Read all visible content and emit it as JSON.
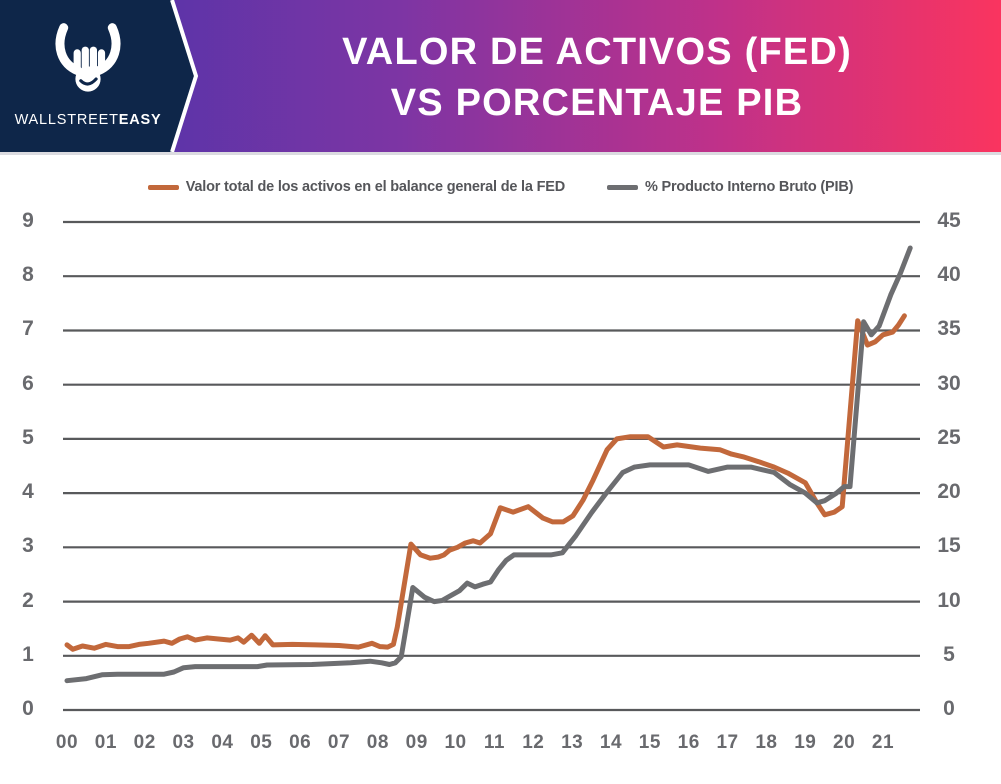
{
  "header": {
    "brand": {
      "regular": "WALLSTREET",
      "bold": "EASY"
    },
    "title_line1": "VALOR DE ACTIVOS (FED)",
    "title_line2": "VS PORCENTAJE PIB",
    "colors": {
      "navy": "#0E2649",
      "gradient_start": "#4634AB",
      "gradient_mid": "#7D35A4",
      "gradient_mid2": "#C03189",
      "gradient_end": "#FA345F",
      "title_text": "#FFFFFF"
    }
  },
  "legend": [
    {
      "label": "Valor total de los activos en el balance general de la FED",
      "color": "#C2683B"
    },
    {
      "label": "% Producto Interno Bruto (PIB)",
      "color": "#6D6E71"
    }
  ],
  "chart_data": {
    "type": "line",
    "title": "VALOR DE ACTIVOS (FED) VS PORCENTAJE PIB",
    "grid": "horizontal",
    "grid_color": "#58595B",
    "tick_color": "#696A6E",
    "legend_position": "top",
    "x_axis": {
      "tick_labels": [
        "00",
        "01",
        "02",
        "03",
        "04",
        "05",
        "06",
        "07",
        "08",
        "09",
        "10",
        "11",
        "12",
        "13",
        "14",
        "15",
        "16",
        "17",
        "18",
        "19",
        "20",
        "21"
      ],
      "range": [
        2000,
        2021.8
      ]
    },
    "left_axis": {
      "ticks": [
        0,
        1,
        2,
        3,
        4,
        5,
        6,
        7,
        8,
        9
      ],
      "range": [
        0,
        9
      ]
    },
    "right_axis": {
      "ticks": [
        0,
        5,
        10,
        15,
        20,
        25,
        30,
        35,
        40,
        45
      ],
      "range": [
        0,
        45
      ]
    },
    "series": [
      {
        "id": "fed-assets-line",
        "name": "Valor total de los activos en el balance general de la FED",
        "axis": "left",
        "color": "#C2683B",
        "points": [
          [
            2000.0,
            1.2
          ],
          [
            2000.15,
            1.12
          ],
          [
            2000.4,
            1.18
          ],
          [
            2000.7,
            1.14
          ],
          [
            2001.0,
            1.21
          ],
          [
            2001.3,
            1.17
          ],
          [
            2001.6,
            1.17
          ],
          [
            2001.85,
            1.21
          ],
          [
            2002.1,
            1.23
          ],
          [
            2002.5,
            1.27
          ],
          [
            2002.7,
            1.23
          ],
          [
            2002.9,
            1.31
          ],
          [
            2003.1,
            1.35
          ],
          [
            2003.3,
            1.29
          ],
          [
            2003.6,
            1.33
          ],
          [
            2003.9,
            1.31
          ],
          [
            2004.2,
            1.29
          ],
          [
            2004.4,
            1.33
          ],
          [
            2004.55,
            1.25
          ],
          [
            2004.75,
            1.38
          ],
          [
            2004.95,
            1.23
          ],
          [
            2005.1,
            1.37
          ],
          [
            2005.3,
            1.2
          ],
          [
            2005.8,
            1.21
          ],
          [
            2006.4,
            1.2
          ],
          [
            2007.0,
            1.19
          ],
          [
            2007.5,
            1.16
          ],
          [
            2007.85,
            1.23
          ],
          [
            2008.05,
            1.17
          ],
          [
            2008.25,
            1.16
          ],
          [
            2008.4,
            1.21
          ],
          [
            2008.5,
            1.53
          ],
          [
            2008.85,
            3.06
          ],
          [
            2009.1,
            2.86
          ],
          [
            2009.35,
            2.8
          ],
          [
            2009.55,
            2.82
          ],
          [
            2009.7,
            2.86
          ],
          [
            2009.85,
            2.95
          ],
          [
            2010.05,
            3.0
          ],
          [
            2010.25,
            3.08
          ],
          [
            2010.45,
            3.12
          ],
          [
            2010.63,
            3.08
          ],
          [
            2010.9,
            3.25
          ],
          [
            2011.15,
            3.73
          ],
          [
            2011.48,
            3.65
          ],
          [
            2011.87,
            3.75
          ],
          [
            2012.25,
            3.54
          ],
          [
            2012.5,
            3.47
          ],
          [
            2012.77,
            3.47
          ],
          [
            2013.02,
            3.58
          ],
          [
            2013.28,
            3.87
          ],
          [
            2013.54,
            4.24
          ],
          [
            2013.9,
            4.8
          ],
          [
            2014.15,
            5.0
          ],
          [
            2014.5,
            5.04
          ],
          [
            2014.95,
            5.04
          ],
          [
            2015.35,
            4.85
          ],
          [
            2015.7,
            4.89
          ],
          [
            2016.3,
            4.83
          ],
          [
            2016.8,
            4.8
          ],
          [
            2017.1,
            4.72
          ],
          [
            2017.4,
            4.67
          ],
          [
            2017.8,
            4.58
          ],
          [
            2018.2,
            4.48
          ],
          [
            2018.55,
            4.37
          ],
          [
            2019.0,
            4.19
          ],
          [
            2019.3,
            3.82
          ],
          [
            2019.5,
            3.6
          ],
          [
            2019.75,
            3.65
          ],
          [
            2019.95,
            3.75
          ],
          [
            2020.35,
            7.18
          ],
          [
            2020.6,
            6.73
          ],
          [
            2020.8,
            6.79
          ],
          [
            2021.0,
            6.92
          ],
          [
            2021.25,
            6.97
          ],
          [
            2021.4,
            7.1
          ],
          [
            2021.55,
            7.27
          ]
        ]
      },
      {
        "id": "pib-line",
        "name": "% Producto Interno Bruto (PIB)",
        "axis": "right",
        "color": "#6D6E71",
        "points": [
          [
            2000.0,
            2.7
          ],
          [
            2000.5,
            2.9
          ],
          [
            2000.9,
            3.25
          ],
          [
            2001.3,
            3.3
          ],
          [
            2002.5,
            3.3
          ],
          [
            2002.75,
            3.5
          ],
          [
            2003.0,
            3.9
          ],
          [
            2003.3,
            4.0
          ],
          [
            2004.9,
            4.0
          ],
          [
            2005.15,
            4.15
          ],
          [
            2006.3,
            4.2
          ],
          [
            2007.3,
            4.35
          ],
          [
            2007.8,
            4.5
          ],
          [
            2008.1,
            4.35
          ],
          [
            2008.3,
            4.2
          ],
          [
            2008.45,
            4.35
          ],
          [
            2008.6,
            4.9
          ],
          [
            2008.9,
            11.3
          ],
          [
            2009.2,
            10.4
          ],
          [
            2009.45,
            10.0
          ],
          [
            2009.65,
            10.1
          ],
          [
            2009.9,
            10.6
          ],
          [
            2010.1,
            11.0
          ],
          [
            2010.3,
            11.7
          ],
          [
            2010.5,
            11.35
          ],
          [
            2010.7,
            11.6
          ],
          [
            2010.9,
            11.8
          ],
          [
            2011.1,
            12.9
          ],
          [
            2011.3,
            13.8
          ],
          [
            2011.5,
            14.3
          ],
          [
            2012.45,
            14.3
          ],
          [
            2012.75,
            14.5
          ],
          [
            2013.1,
            16.1
          ],
          [
            2013.5,
            18.2
          ],
          [
            2013.9,
            20.1
          ],
          [
            2014.3,
            21.9
          ],
          [
            2014.6,
            22.4
          ],
          [
            2015.0,
            22.6
          ],
          [
            2016.0,
            22.6
          ],
          [
            2016.5,
            22.0
          ],
          [
            2017.0,
            22.4
          ],
          [
            2017.6,
            22.4
          ],
          [
            2018.2,
            21.9
          ],
          [
            2018.6,
            20.8
          ],
          [
            2019.0,
            20.0
          ],
          [
            2019.3,
            19.1
          ],
          [
            2019.5,
            19.3
          ],
          [
            2019.8,
            20.0
          ],
          [
            2020.0,
            20.6
          ],
          [
            2020.15,
            20.6
          ],
          [
            2020.5,
            35.8
          ],
          [
            2020.7,
            34.6
          ],
          [
            2020.9,
            35.4
          ],
          [
            2021.2,
            38.3
          ],
          [
            2021.45,
            40.3
          ],
          [
            2021.7,
            42.6
          ]
        ]
      }
    ]
  }
}
